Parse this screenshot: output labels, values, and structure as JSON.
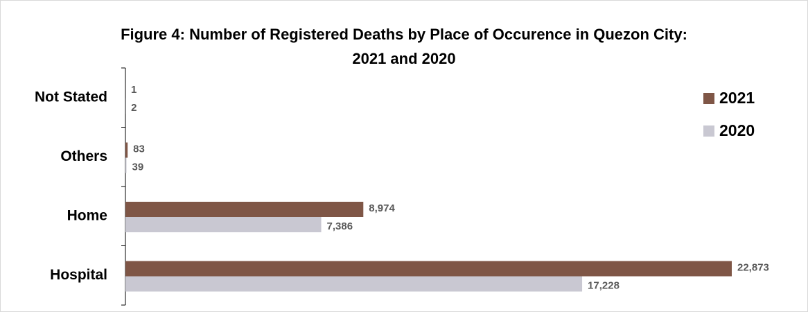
{
  "chart_data": {
    "type": "hbar",
    "title": "Figure 4: Number of Registered Deaths by Place of Occurence in Quezon City: 2021 and 2020",
    "categories": [
      "Not Stated",
      "Others",
      "Home",
      "Hospital"
    ],
    "series": [
      {
        "name": "2021",
        "color": "#7f5646",
        "values": [
          1,
          83,
          8974,
          22873
        ],
        "value_labels": [
          "1",
          "83",
          "8,974",
          "22,873"
        ]
      },
      {
        "name": "2020",
        "color": "#c9c8d2",
        "values": [
          2,
          39,
          7386,
          17228
        ],
        "value_labels": [
          "2",
          "39",
          "7,386",
          "17,228"
        ]
      }
    ],
    "legend": "right"
  }
}
